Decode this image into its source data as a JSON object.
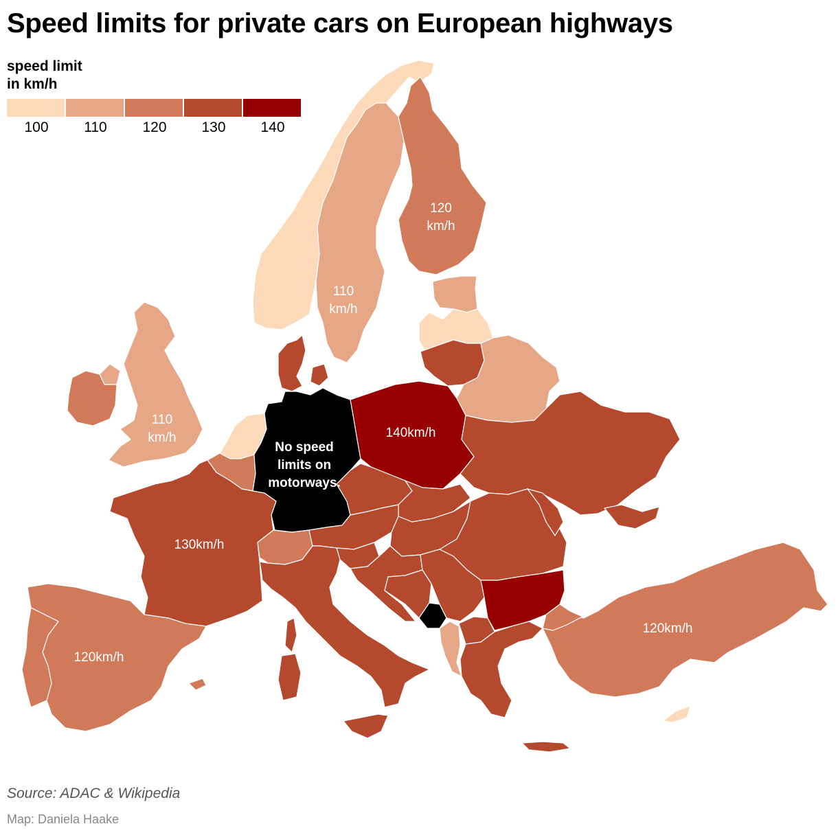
{
  "title": "Speed limits for private cars on European highways",
  "legend": {
    "title_line1": "speed limit",
    "title_line2": "in km/h",
    "bins": [
      {
        "label": "100",
        "color": "#fcd9b8"
      },
      {
        "label": "110",
        "color": "#e6a786"
      },
      {
        "label": "120",
        "color": "#d07a5a"
      },
      {
        "label": "130",
        "color": "#b4492e"
      },
      {
        "label": "140",
        "color": "#970200"
      }
    ]
  },
  "no_limit_color": "#000000",
  "countries": [
    {
      "name": "Norway",
      "limit": 100
    },
    {
      "name": "Sweden",
      "limit": 110
    },
    {
      "name": "Finland",
      "limit": 120
    },
    {
      "name": "Estonia",
      "limit": 110
    },
    {
      "name": "Latvia",
      "limit": 100
    },
    {
      "name": "Lithuania",
      "limit": 130
    },
    {
      "name": "Belarus",
      "limit": 110
    },
    {
      "name": "United Kingdom",
      "limit": 110
    },
    {
      "name": "Ireland",
      "limit": 120
    },
    {
      "name": "Denmark",
      "limit": 130
    },
    {
      "name": "Netherlands",
      "limit": 100
    },
    {
      "name": "Belgium",
      "limit": 120
    },
    {
      "name": "Germany",
      "limit": null
    },
    {
      "name": "Poland",
      "limit": 140
    },
    {
      "name": "Ukraine",
      "limit": 130
    },
    {
      "name": "France",
      "limit": 130
    },
    {
      "name": "Switzerland",
      "limit": 120
    },
    {
      "name": "Czechia",
      "limit": 130
    },
    {
      "name": "Slovakia",
      "limit": 130
    },
    {
      "name": "Austria",
      "limit": 130
    },
    {
      "name": "Hungary",
      "limit": 130
    },
    {
      "name": "Romania",
      "limit": 130
    },
    {
      "name": "Moldova",
      "limit": 130
    },
    {
      "name": "Bulgaria",
      "limit": 140
    },
    {
      "name": "Italy",
      "limit": 130
    },
    {
      "name": "Spain",
      "limit": 120
    },
    {
      "name": "Portugal",
      "limit": 120
    },
    {
      "name": "Turkey",
      "limit": 120
    },
    {
      "name": "Greece",
      "limit": 130
    },
    {
      "name": "Albania",
      "limit": 110
    },
    {
      "name": "Cyprus",
      "limit": 100
    },
    {
      "name": "Slovenia",
      "limit": 130
    },
    {
      "name": "Croatia",
      "limit": 130
    },
    {
      "name": "Bosnia and Herzegovina",
      "limit": 130
    },
    {
      "name": "Serbia",
      "limit": 130
    },
    {
      "name": "North Macedonia",
      "limit": 130
    }
  ],
  "labels": {
    "finland_line1": "120",
    "finland_line2": "km/h",
    "sweden_line1": "110",
    "sweden_line2": "km/h",
    "uk_line1": "110",
    "uk_line2": "km/h",
    "germany_line1": "No speed",
    "germany_line2": "limits on",
    "germany_line3": "motorways.",
    "poland": "140km/h",
    "france": "130km/h",
    "spain": "120km/h",
    "turkey": "120km/h"
  },
  "source": "Source: ADAC & Wikipedia",
  "credit": "Map: Daniela Haake"
}
